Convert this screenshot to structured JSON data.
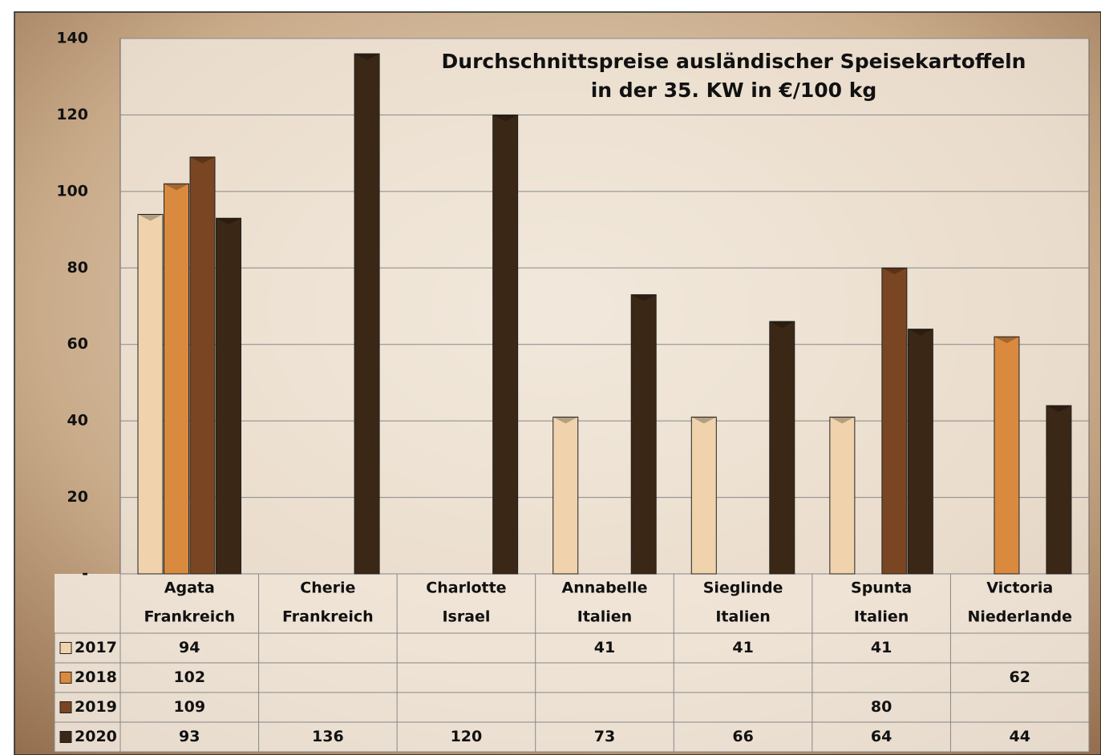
{
  "chart_data": {
    "type": "bar",
    "title": [
      "Durchschnittspreise ausländischer Speisekartoffeln",
      "in der 35. KW in €/100 kg"
    ],
    "categories": [
      [
        "Agata",
        "Frankreich"
      ],
      [
        "Cherie",
        "Frankreich"
      ],
      [
        "Charlotte",
        "Israel"
      ],
      [
        "Annabelle",
        "Italien"
      ],
      [
        "Sieglinde",
        "Italien"
      ],
      [
        "Spunta",
        "Italien"
      ],
      [
        "Victoria",
        "Niederlande"
      ]
    ],
    "series": [
      {
        "name": "2017",
        "color": "#f0d3ad",
        "values": [
          94,
          null,
          null,
          41,
          41,
          41,
          null
        ]
      },
      {
        "name": "2018",
        "color": "#d98a3e",
        "values": [
          102,
          null,
          null,
          null,
          null,
          null,
          62
        ]
      },
      {
        "name": "2019",
        "color": "#7a4522",
        "values": [
          109,
          null,
          null,
          null,
          null,
          80,
          null
        ]
      },
      {
        "name": "2020",
        "color": "#3b2716",
        "values": [
          93,
          136,
          120,
          73,
          66,
          64,
          44
        ]
      }
    ],
    "ylim": [
      0,
      140
    ],
    "yticks": [
      {
        "value": 0,
        "label": "-"
      },
      20,
      40,
      60,
      80,
      100,
      120,
      140
    ],
    "grid": true
  }
}
